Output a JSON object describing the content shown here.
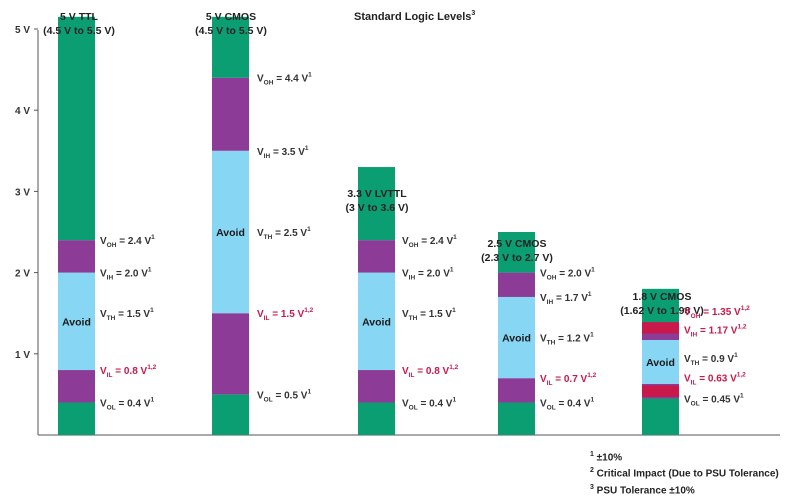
{
  "chart_data": {
    "type": "bar",
    "title": "Standard Logic Levels",
    "title_sup": "3",
    "ylim": [
      0,
      5.15
    ],
    "yticks": [
      {
        "value": 1,
        "label": "1 V"
      },
      {
        "value": 2,
        "label": "2 V"
      },
      {
        "value": 3,
        "label": "3 V"
      },
      {
        "value": 4,
        "label": "4 V"
      },
      {
        "value": 5,
        "label": "5 V"
      }
    ],
    "colors": {
      "green": "#0b9e72",
      "purple": "#8c3c97",
      "avoid": "#87d6f4",
      "critical": "#c8194a",
      "label_normal": "#333333",
      "label_critical": "#c8194a"
    },
    "families": [
      {
        "name": "5 V TTL",
        "range": "(4.5 V to 5.5 V)",
        "top": 5.15,
        "VOH": 2.4,
        "VIH": 2.0,
        "VTH": 1.5,
        "VIL": 0.8,
        "VOL": 0.4,
        "critical_band_top": null,
        "critical_band_bottom": null,
        "labels": [
          {
            "sub": "OH",
            "text": " = 2.4 V",
            "sup": "1",
            "critical": false,
            "value": 2.4
          },
          {
            "sub": "IH",
            "text": " = 2.0 V",
            "sup": "1",
            "critical": false,
            "value": 2.0
          },
          {
            "sub": "TH",
            "text": " = 1.5 V",
            "sup": "1",
            "critical": false,
            "value": 1.5
          },
          {
            "sub": "IL",
            "text": " = 0.8 V",
            "sup": "1,2",
            "critical": true,
            "value": 0.8
          },
          {
            "sub": "OL",
            "text": " = 0.4 V",
            "sup": "1",
            "critical": false,
            "value": 0.4
          }
        ]
      },
      {
        "name": "5 V CMOS",
        "range": "(4.5 V to 5.5 V)",
        "top": 5.15,
        "VOH": 4.4,
        "VIH": 3.5,
        "VTH": 2.5,
        "VIL": 1.5,
        "VOL": 0.5,
        "critical_band_top": null,
        "critical_band_bottom": null,
        "labels": [
          {
            "sub": "OH",
            "text": " = 4.4 V",
            "sup": "1",
            "critical": false,
            "value": 4.4
          },
          {
            "sub": "IH",
            "text": " = 3.5 V",
            "sup": "1",
            "critical": false,
            "value": 3.5
          },
          {
            "sub": "TH",
            "text": " = 2.5 V",
            "sup": "1",
            "critical": false,
            "value": 2.5
          },
          {
            "sub": "IL",
            "text": " = 1.5 V",
            "sup": "1,2",
            "critical": true,
            "value": 1.5
          },
          {
            "sub": "OL",
            "text": " = 0.5 V",
            "sup": "1",
            "critical": false,
            "value": 0.5
          }
        ]
      },
      {
        "name": "3.3 V LVTTL",
        "range": "(3 V to 3.6 V)",
        "top": 3.3,
        "VOH": 2.4,
        "VIH": 2.0,
        "VTH": 1.5,
        "VIL": 0.8,
        "VOL": 0.4,
        "critical_band_top": null,
        "critical_band_bottom": null,
        "labels": [
          {
            "sub": "OH",
            "text": " = 2.4 V",
            "sup": "1",
            "critical": false,
            "value": 2.4
          },
          {
            "sub": "IH",
            "text": " = 2.0 V",
            "sup": "1",
            "critical": false,
            "value": 2.0
          },
          {
            "sub": "TH",
            "text": " = 1.5 V",
            "sup": "1",
            "critical": false,
            "value": 1.5
          },
          {
            "sub": "IL",
            "text": " = 0.8 V",
            "sup": "1,2",
            "critical": true,
            "value": 0.8
          },
          {
            "sub": "OL",
            "text": " = 0.4 V",
            "sup": "1",
            "critical": false,
            "value": 0.4
          }
        ]
      },
      {
        "name": "2.5 V CMOS",
        "range": "(2.3 V to 2.7 V)",
        "top": 2.5,
        "VOH": 2.0,
        "VIH": 1.7,
        "VTH": 1.2,
        "VIL": 0.7,
        "VOL": 0.4,
        "critical_band_top": null,
        "critical_band_bottom": null,
        "labels": [
          {
            "sub": "OH",
            "text": " = 2.0 V",
            "sup": "1",
            "critical": false,
            "value": 2.0
          },
          {
            "sub": "IH",
            "text": " = 1.7 V",
            "sup": "1",
            "critical": false,
            "value": 1.7
          },
          {
            "sub": "TH",
            "text": " = 1.2 V",
            "sup": "1",
            "critical": false,
            "value": 1.2
          },
          {
            "sub": "IL",
            "text": " = 0.7 V",
            "sup": "1,2",
            "critical": true,
            "value": 0.7
          },
          {
            "sub": "OL",
            "text": " = 0.4 V",
            "sup": "1",
            "critical": false,
            "value": 0.4
          }
        ]
      },
      {
        "name": "1.8 V CMOS",
        "range": "(1.62 V to 1.98 V)",
        "top": 1.8,
        "VOH": 1.35,
        "VIH": 1.17,
        "VTH": 0.9,
        "VIL": 0.63,
        "VOL": 0.45,
        "critical_band_top": 1.53,
        "critical_band_bottom": 0.45,
        "labels": [
          {
            "sub": "OH",
            "text": " = 1.35 V",
            "sup": "1,2",
            "critical": true,
            "value": 1.53
          },
          {
            "sub": "IH",
            "text": " = 1.17 V",
            "sup": "1,2",
            "critical": true,
            "value": 1.3
          },
          {
            "sub": "TH",
            "text": " = 0.9 V",
            "sup": "1",
            "critical": false,
            "value": 0.95
          },
          {
            "sub": "IL",
            "text": " = 0.63 V",
            "sup": "1,2",
            "critical": true,
            "value": 0.71
          },
          {
            "sub": "OL",
            "text": " = 0.45 V",
            "sup": "1",
            "critical": false,
            "value": 0.45
          }
        ]
      }
    ],
    "avoid_label": "Avoid"
  },
  "footnotes": [
    {
      "sup": "1",
      "text": " ±10%"
    },
    {
      "sup": "2",
      "text": " Critical Impact (Due to PSU Tolerance)"
    },
    {
      "sup": "3",
      "text": " PSU Tolerance ±10%"
    }
  ]
}
